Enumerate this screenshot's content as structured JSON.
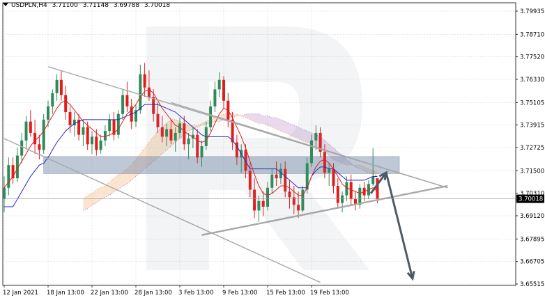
{
  "header": {
    "symbol": "USDPLN,H4",
    "open": "3.71100",
    "high": "3.71148",
    "low": "3.69788",
    "close": "3.70018"
  },
  "colors": {
    "bull": "#2e8b57",
    "bear": "#e31b1b",
    "tenkan": "#e31b1b",
    "kijun": "#2323c8",
    "kumo": "#f2a15a",
    "kumo_bear": "#b07fc0",
    "channel": "#a8a8a8",
    "zone": "#6f86a6",
    "arrow": "#4e5a66",
    "grid": "#d8d8d8",
    "price_tag_bg": "#000000",
    "price_tag_fg": "#ffffff"
  },
  "chart_data": {
    "type": "candlestick",
    "symbol": "USDPLN",
    "timeframe": "H4",
    "y_ticks": [
      "3.79935",
      "3.78710",
      "3.77520",
      "3.76330",
      "3.75105",
      "3.73915",
      "3.72725",
      "3.71500",
      "3.70310",
      "3.69120",
      "3.67895",
      "3.66705",
      "3.65515"
    ],
    "ylim": [
      3.65515,
      3.79935
    ],
    "x_ticks": [
      "12 Jan 2021",
      "18 Jan 13:00",
      "22 Jan 13:00",
      "28 Jan 13:00",
      "3 Feb 13:00",
      "9 Feb 13:00",
      "15 Feb 13:00",
      "19 Feb 13:00"
    ],
    "current_price": "3.70018",
    "candles": [
      [
        3.7,
        3.712,
        3.693,
        3.706
      ],
      [
        3.706,
        3.722,
        3.702,
        3.718
      ],
      [
        3.718,
        3.722,
        3.708,
        3.711
      ],
      [
        3.711,
        3.727,
        3.709,
        3.723
      ],
      [
        3.723,
        3.735,
        3.719,
        3.731
      ],
      [
        3.731,
        3.744,
        3.727,
        3.741
      ],
      [
        3.741,
        3.747,
        3.733,
        3.735
      ],
      [
        3.735,
        3.742,
        3.724,
        3.729
      ],
      [
        3.729,
        3.734,
        3.721,
        3.726
      ],
      [
        3.726,
        3.745,
        3.724,
        3.742
      ],
      [
        3.742,
        3.752,
        3.738,
        3.749
      ],
      [
        3.749,
        3.758,
        3.745,
        3.756
      ],
      [
        3.756,
        3.766,
        3.752,
        3.763
      ],
      [
        3.763,
        3.768,
        3.752,
        3.755
      ],
      [
        3.755,
        3.76,
        3.742,
        3.746
      ],
      [
        3.746,
        3.749,
        3.735,
        3.739
      ],
      [
        3.739,
        3.746,
        3.733,
        3.742
      ],
      [
        3.742,
        3.745,
        3.731,
        3.734
      ],
      [
        3.734,
        3.742,
        3.728,
        3.738
      ],
      [
        3.738,
        3.741,
        3.726,
        3.729
      ],
      [
        3.729,
        3.736,
        3.724,
        3.733
      ],
      [
        3.733,
        3.737,
        3.723,
        3.726
      ],
      [
        3.726,
        3.734,
        3.724,
        3.731
      ],
      [
        3.731,
        3.739,
        3.728,
        3.736
      ],
      [
        3.736,
        3.745,
        3.733,
        3.742
      ],
      [
        3.742,
        3.746,
        3.731,
        3.734
      ],
      [
        3.734,
        3.747,
        3.732,
        3.745
      ],
      [
        3.745,
        3.758,
        3.742,
        3.755
      ],
      [
        3.755,
        3.762,
        3.746,
        3.749
      ],
      [
        3.749,
        3.753,
        3.737,
        3.741
      ],
      [
        3.741,
        3.75,
        3.738,
        3.747
      ],
      [
        3.747,
        3.771,
        3.745,
        3.766
      ],
      [
        3.766,
        3.772,
        3.754,
        3.759
      ],
      [
        3.759,
        3.768,
        3.752,
        3.754
      ],
      [
        3.754,
        3.758,
        3.741,
        3.745
      ],
      [
        3.745,
        3.751,
        3.735,
        3.738
      ],
      [
        3.738,
        3.744,
        3.73,
        3.733
      ],
      [
        3.733,
        3.74,
        3.728,
        3.737
      ],
      [
        3.737,
        3.742,
        3.729,
        3.731
      ],
      [
        3.731,
        3.738,
        3.725,
        3.735
      ],
      [
        3.735,
        3.743,
        3.732,
        3.74
      ],
      [
        3.74,
        3.744,
        3.726,
        3.729
      ],
      [
        3.729,
        3.735,
        3.721,
        3.732
      ],
      [
        3.732,
        3.738,
        3.727,
        3.734
      ],
      [
        3.734,
        3.737,
        3.719,
        3.722
      ],
      [
        3.722,
        3.731,
        3.717,
        3.728
      ],
      [
        3.728,
        3.741,
        3.726,
        3.738
      ],
      [
        3.738,
        3.752,
        3.736,
        3.749
      ],
      [
        3.749,
        3.762,
        3.746,
        3.758
      ],
      [
        3.758,
        3.767,
        3.754,
        3.763
      ],
      [
        3.763,
        3.765,
        3.748,
        3.752
      ],
      [
        3.752,
        3.756,
        3.738,
        3.742
      ],
      [
        3.742,
        3.746,
        3.726,
        3.73
      ],
      [
        3.73,
        3.734,
        3.718,
        3.722
      ],
      [
        3.722,
        3.729,
        3.714,
        3.726
      ],
      [
        3.726,
        3.729,
        3.711,
        3.715
      ],
      [
        3.715,
        3.719,
        3.701,
        3.705
      ],
      [
        3.705,
        3.711,
        3.69,
        3.694
      ],
      [
        3.694,
        3.702,
        3.688,
        3.699
      ],
      [
        3.699,
        3.704,
        3.691,
        3.696
      ],
      [
        3.696,
        3.709,
        3.694,
        3.706
      ],
      [
        3.706,
        3.716,
        3.703,
        3.713
      ],
      [
        3.713,
        3.72,
        3.707,
        3.711
      ],
      [
        3.711,
        3.719,
        3.708,
        3.716
      ],
      [
        3.716,
        3.72,
        3.701,
        3.704
      ],
      [
        3.704,
        3.71,
        3.695,
        3.701
      ],
      [
        3.701,
        3.707,
        3.692,
        3.697
      ],
      [
        3.697,
        3.704,
        3.69,
        3.694
      ],
      [
        3.694,
        3.707,
        3.693,
        3.705
      ],
      [
        3.705,
        3.722,
        3.703,
        3.719
      ],
      [
        3.719,
        3.734,
        3.717,
        3.731
      ],
      [
        3.731,
        3.739,
        3.726,
        3.735
      ],
      [
        3.735,
        3.738,
        3.722,
        3.725
      ],
      [
        3.725,
        3.729,
        3.711,
        3.714
      ],
      [
        3.714,
        3.719,
        3.707,
        3.716
      ],
      [
        3.716,
        3.719,
        3.703,
        3.707
      ],
      [
        3.707,
        3.711,
        3.695,
        3.698
      ],
      [
        3.698,
        3.704,
        3.693,
        3.702
      ],
      [
        3.702,
        3.712,
        3.699,
        3.709
      ],
      [
        3.709,
        3.713,
        3.697,
        3.7
      ],
      [
        3.7,
        3.704,
        3.694,
        3.697
      ],
      [
        3.697,
        3.708,
        3.695,
        3.706
      ],
      [
        3.706,
        3.709,
        3.699,
        3.702
      ],
      [
        3.702,
        3.71,
        3.7,
        3.708
      ],
      [
        3.708,
        3.727,
        3.707,
        3.712
      ],
      [
        3.711,
        3.711,
        3.698,
        3.7
      ]
    ],
    "tenkan_sen": [
      3.706,
      3.709,
      3.712,
      3.716,
      3.72,
      3.724,
      3.728,
      3.731,
      3.733,
      3.736,
      3.74,
      3.744,
      3.748,
      3.751,
      3.752,
      3.75,
      3.747,
      3.744,
      3.741,
      3.739,
      3.737,
      3.735,
      3.733,
      3.733,
      3.734,
      3.735,
      3.737,
      3.741,
      3.745,
      3.747,
      3.75,
      3.754,
      3.757,
      3.758,
      3.756,
      3.752,
      3.748,
      3.745,
      3.742,
      3.739,
      3.738,
      3.736,
      3.734,
      3.733,
      3.731,
      3.73,
      3.731,
      3.735,
      3.74,
      3.745,
      3.748,
      3.747,
      3.743,
      3.738,
      3.733,
      3.727,
      3.72,
      3.713,
      3.707,
      3.703,
      3.702,
      3.703,
      3.705,
      3.707,
      3.707,
      3.706,
      3.704,
      3.702,
      3.702,
      3.706,
      3.712,
      3.717,
      3.72,
      3.721,
      3.719,
      3.716,
      3.712,
      3.708,
      3.706,
      3.705,
      3.704,
      3.703,
      3.704,
      3.705,
      3.706,
      3.704
    ],
    "kijun_sen": [
      3.696,
      3.696,
      3.696,
      3.7,
      3.704,
      3.708,
      3.712,
      3.715,
      3.718,
      3.719,
      3.722,
      3.726,
      3.73,
      3.733,
      3.736,
      3.738,
      3.74,
      3.741,
      3.742,
      3.742,
      3.742,
      3.742,
      3.742,
      3.742,
      3.742,
      3.742,
      3.742,
      3.743,
      3.744,
      3.745,
      3.746,
      3.748,
      3.75,
      3.75,
      3.75,
      3.75,
      3.749,
      3.748,
      3.747,
      3.746,
      3.744,
      3.742,
      3.74,
      3.738,
      3.736,
      3.734,
      3.733,
      3.733,
      3.733,
      3.733,
      3.733,
      3.733,
      3.731,
      3.728,
      3.724,
      3.72,
      3.716,
      3.716,
      3.716,
      3.716,
      3.716,
      3.716,
      3.716,
      3.714,
      3.712,
      3.71,
      3.708,
      3.706,
      3.706,
      3.706,
      3.712,
      3.715,
      3.717,
      3.717,
      3.716,
      3.716,
      3.714,
      3.712,
      3.71,
      3.71,
      3.71,
      3.71,
      3.71,
      3.711,
      3.712,
      3.712
    ],
    "kumo_span_a": [
      3.7,
      3.702,
      3.703,
      3.705,
      3.706,
      3.707,
      3.709,
      3.711,
      3.713,
      3.714,
      3.716,
      3.718,
      3.721,
      3.724,
      3.727,
      3.73,
      3.733,
      3.736,
      3.738,
      3.74,
      3.742,
      3.742,
      3.741,
      3.74,
      3.739,
      3.739,
      3.739,
      3.74,
      3.741,
      3.742,
      3.743,
      3.744,
      3.745,
      3.745,
      3.745,
      3.745,
      3.744,
      3.743,
      3.742,
      3.741,
      3.74,
      3.74,
      3.739,
      3.738,
      3.737,
      3.736,
      3.735,
      3.734,
      3.733,
      3.732,
      3.731,
      3.73,
      3.729,
      3.728,
      3.727,
      3.725,
      3.723,
      3.721,
      3.72,
      3.719,
      3.718,
      3.718,
      3.718,
      3.718,
      3.717,
      3.716,
      3.715,
      3.714
    ],
    "kumo_span_b": [
      3.694,
      3.695,
      3.697,
      3.698,
      3.7,
      3.701,
      3.702,
      3.704,
      3.705,
      3.707,
      3.708,
      3.71,
      3.712,
      3.714,
      3.716,
      3.718,
      3.72,
      3.722,
      3.724,
      3.726,
      3.728,
      3.73,
      3.732,
      3.734,
      3.736,
      3.737,
      3.738,
      3.739,
      3.74,
      3.74,
      3.741,
      3.741,
      3.742,
      3.743,
      3.743,
      3.744,
      3.744,
      3.745,
      3.745,
      3.745,
      3.745,
      3.744,
      3.744,
      3.743,
      3.743,
      3.742,
      3.741,
      3.74,
      3.739,
      3.738,
      3.737,
      3.736,
      3.735,
      3.734,
      3.733,
      3.731,
      3.729,
      3.727,
      3.725,
      3.723,
      3.721,
      3.719,
      3.717,
      3.716,
      3.715,
      3.714,
      3.713,
      3.712
    ],
    "kumo_start_index": 18,
    "support_resistance_zone": [
      3.7135,
      3.7225
    ],
    "channel_upper": [
      [
        3.77,
        10
      ],
      [
        3.706,
        101
      ]
    ],
    "channel_lower": [
      [
        3.732,
        0
      ],
      [
        3.656,
        72
      ]
    ],
    "triangle_upper": [
      [
        3.751,
        38
      ],
      [
        3.706,
        101
      ]
    ],
    "triangle_lower": [
      [
        3.681,
        45
      ],
      [
        3.707,
        101
      ]
    ],
    "forecast_path": [
      [
        3.703,
        83.5
      ],
      [
        3.714,
        87
      ],
      [
        3.658,
        93
      ]
    ],
    "grid": true,
    "legend": "none"
  }
}
